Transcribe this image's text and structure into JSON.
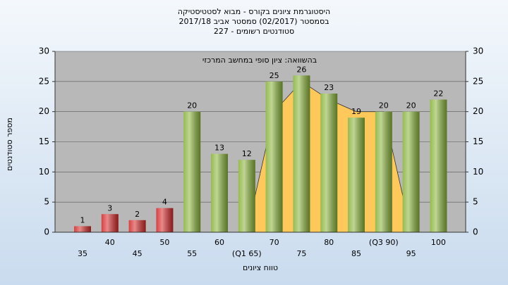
{
  "chart_data": {
    "type": "bar",
    "title": [
      "היסטוגרמת ציונים בקורס - מבוא לסטטיסטיקה",
      "בסמסטר  (02/2017)  סמסטר אביב 2017/18",
      "סטודנטים רשומים - 227"
    ],
    "annotation": "בהשוואה: ציון סופי במחשב המרכזי",
    "x_label": "טווח ציונים",
    "y_label": "מספר סטודנטים",
    "categories": [
      "35",
      "40",
      "45",
      "50",
      "55",
      "60",
      "(Q1 65)",
      "70",
      "75",
      "80",
      "85",
      "(Q3 90)",
      "95",
      "100"
    ],
    "values": [
      1,
      3,
      2,
      4,
      20,
      13,
      12,
      25,
      26,
      23,
      19,
      20,
      20,
      22
    ],
    "colors": [
      "#d42a2a",
      "#d42a2a",
      "#d42a2a",
      "#d42a2a",
      "#8ab43c",
      "#8ab43c",
      "#8ab43c",
      "#8ab43c",
      "#8ab43c",
      "#8ab43c",
      "#8ab43c",
      "#8ab43c",
      "#8ab43c",
      "#8ab43c"
    ],
    "comparison": {
      "color": "#ffc85a",
      "values": [
        null,
        null,
        null,
        null,
        null,
        null,
        0,
        20,
        25,
        22,
        20,
        20,
        0,
        null
      ]
    },
    "ylim": [
      0,
      30
    ],
    "yticks": [
      0,
      5,
      10,
      15,
      20,
      25,
      30
    ],
    "grid": true
  }
}
